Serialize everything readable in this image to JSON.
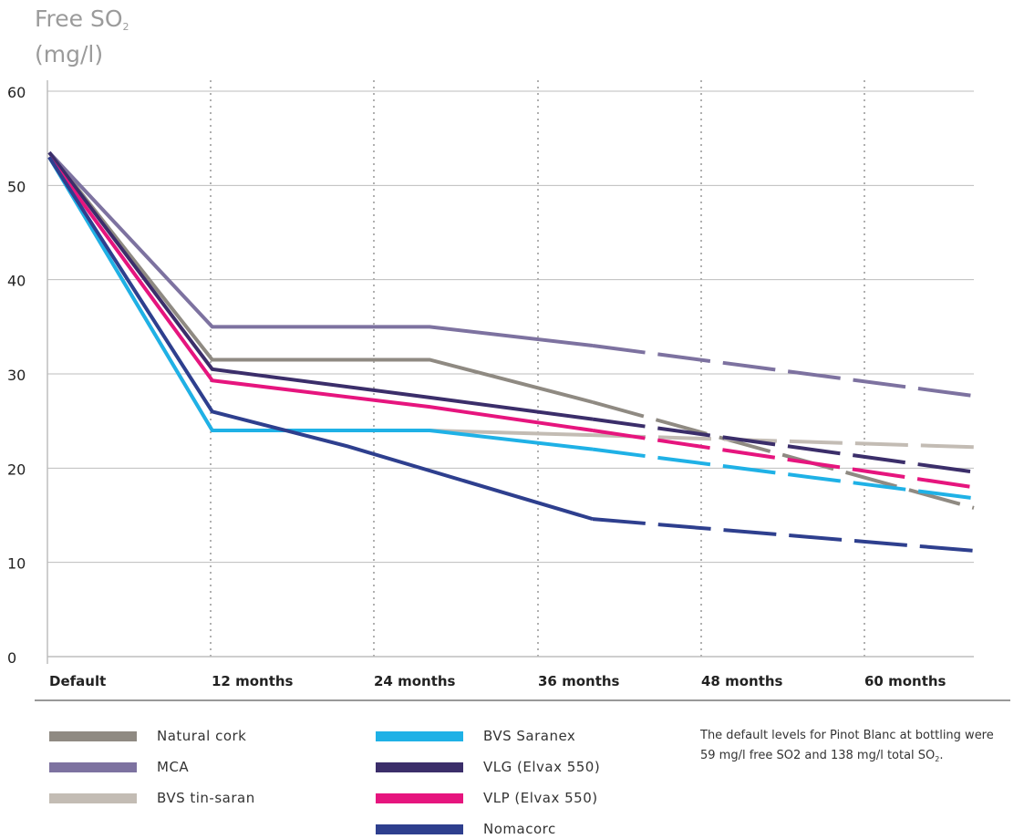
{
  "y_axis_label": {
    "main": "Free SO",
    "sub": "2",
    "unit": "(mg/l)"
  },
  "note": {
    "line1": "The default levels for Pinot Blanc at bottling were",
    "line2_main": "59 mg/l free SO2 and 138 mg/l total SO",
    "line2_sub": "2",
    "line2_end": "."
  },
  "colors": {
    "natural_cork": "#8f8a82",
    "mca": "#7d72a0",
    "bvs_tin_saran": "#c3bcb4",
    "bvs_saranex": "#1fb1e6",
    "vlg": "#3b2e6a",
    "vlp": "#e6157e",
    "nomacorc": "#2e3f8e",
    "grid": "#bdbdbd",
    "vgrid": "#b0b0b0",
    "axis_text": "#222222"
  },
  "legend": [
    {
      "label": "Natural cork",
      "color": "#8f8a82"
    },
    {
      "label": "MCA",
      "color": "#7d72a0"
    },
    {
      "label": "BVS tin-saran",
      "color": "#c3bcb4"
    },
    {
      "label": "BVS Saranex",
      "color": "#1fb1e6"
    },
    {
      "label": "VLG (Elvax 550)",
      "color": "#3b2e6a"
    },
    {
      "label": "VLP (Elvax 550)",
      "color": "#e6157e"
    },
    {
      "label": "Nomacorc",
      "color": "#2e3f8e"
    }
  ],
  "chart_data": {
    "type": "line",
    "title": "",
    "ylabel": "Free SO2 (mg/l)",
    "xlabel": "",
    "categories": [
      "Default",
      "12 months",
      "24 months",
      "36 months",
      "48 months",
      "60 months"
    ],
    "ylim": [
      0,
      60
    ],
    "yticks": [
      0,
      10,
      20,
      30,
      40,
      50,
      60
    ],
    "grid": "horizontal solid, vertical dotted",
    "legend_position": "bottom",
    "notes": "Segments after ~40 months are drawn dashed (projected).",
    "series": [
      {
        "name": "Natural cork",
        "color": "#8f8a82",
        "points": [
          [
            0,
            53.5
          ],
          [
            12,
            31.5
          ],
          [
            28,
            31.5
          ],
          [
            40,
            27.0
          ],
          [
            60,
            19.0
          ]
        ]
      },
      {
        "name": "MCA",
        "color": "#7d72a0",
        "points": [
          [
            0,
            53.5
          ],
          [
            12,
            35.0
          ],
          [
            28,
            35.0
          ],
          [
            40,
            33.0
          ],
          [
            60,
            29.2
          ]
        ]
      },
      {
        "name": "BVS tin-saran",
        "color": "#c3bcb4",
        "points": [
          [
            0,
            53.0
          ],
          [
            12,
            24.0
          ],
          [
            28,
            24.0
          ],
          [
            40,
            23.5
          ],
          [
            60,
            22.6
          ]
        ]
      },
      {
        "name": "BVS Saranex",
        "color": "#1fb1e6",
        "points": [
          [
            0,
            53.0
          ],
          [
            12,
            24.0
          ],
          [
            28,
            24.0
          ],
          [
            40,
            22.0
          ],
          [
            60,
            18.3
          ]
        ]
      },
      {
        "name": "VLG (Elvax 550)",
        "color": "#3b2e6a",
        "points": [
          [
            0,
            53.5
          ],
          [
            12,
            30.5
          ],
          [
            28,
            27.5
          ],
          [
            40,
            25.2
          ],
          [
            60,
            21.2
          ]
        ]
      },
      {
        "name": "VLP (Elvax 550)",
        "color": "#e6157e",
        "points": [
          [
            0,
            53.0
          ],
          [
            12,
            29.3
          ],
          [
            28,
            26.5
          ],
          [
            40,
            24.0
          ],
          [
            60,
            19.7
          ]
        ]
      },
      {
        "name": "Nomacorc",
        "color": "#2e3f8e",
        "points": [
          [
            0,
            53.0
          ],
          [
            12,
            26.0
          ],
          [
            22,
            22.3
          ],
          [
            40,
            14.6
          ],
          [
            60,
            12.2
          ]
        ]
      }
    ]
  }
}
